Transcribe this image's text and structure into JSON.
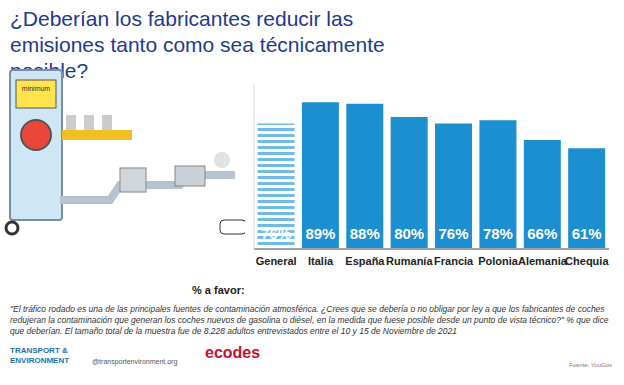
{
  "chart_data": {
    "type": "bar",
    "title": "¿Deberían los fabricantes reducir las emisiones tanto como sea técnicamente posible?",
    "x_label": "% a favor:",
    "categories": [
      "General",
      "Italia",
      "España",
      "Rumanía",
      "Francia",
      "Polonia",
      "Alemania",
      "Chequia"
    ],
    "values": [
      76,
      89,
      88,
      80,
      76,
      78,
      66,
      61
    ],
    "value_labels": [
      "76%",
      "89%",
      "88%",
      "80%",
      "76%",
      "78%",
      "66%",
      "61%"
    ],
    "colors": [
      "#6fbbe6",
      "#1b8fd0",
      "#1b8fd0",
      "#1b8fd0",
      "#1b8fd0",
      "#1b8fd0",
      "#1b8fd0",
      "#1b8fd0"
    ],
    "ylim": [
      0,
      100
    ],
    "data_labels": true,
    "tick_labels": "x",
    "grid": false,
    "illustration_label": "minimum",
    "footnote": "\"El tráfico rodado es una de las principales fuentes de contaminación atmosférica. ¿Crees que se debería o no obligar por ley a que los fabricantes de coches redujeran la contaminación que generan los coches nuevos de gasolina o diésel, en la medida que fuese posible desde un punto de vista técnico?\" % que dice que deberían. El tamaño total de la muestra fue de 8.228 adultos entrevistados entre el 10 y 15 de Noviembre de 2021",
    "logo_left": "TRANSPORT & ENVIRONMENT",
    "handle": "@transportenvironment.org",
    "logo_right": "ecodes",
    "source": "Fuente: YouGov"
  }
}
